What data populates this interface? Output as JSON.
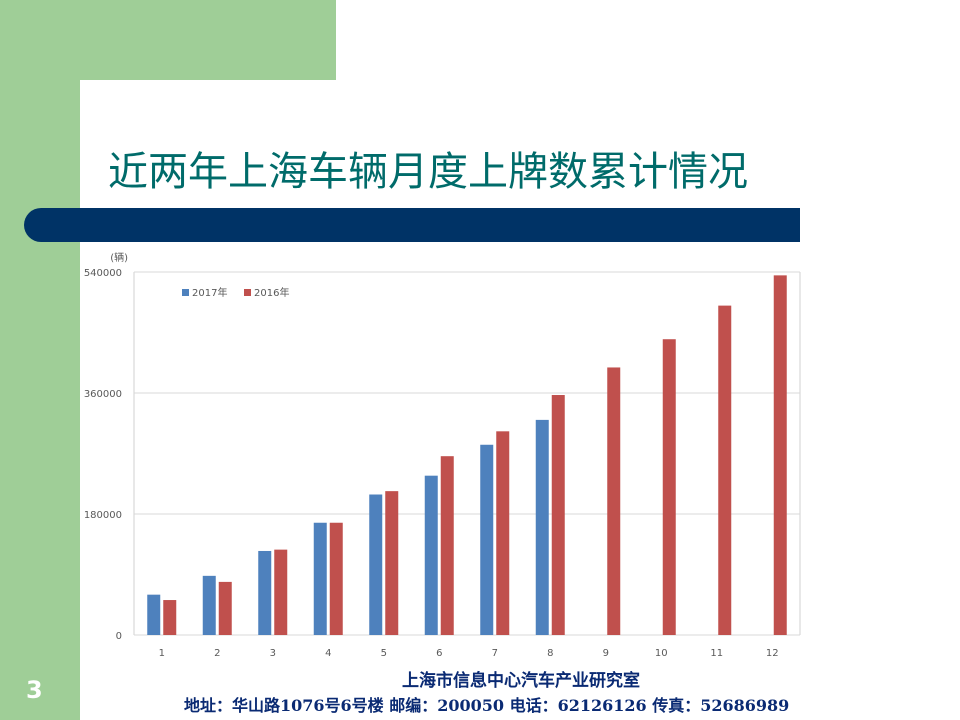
{
  "slide": {
    "title": "近两年上海车辆月度上牌数累计情况",
    "footer_org": "上海市信息中心汽车产业研究室",
    "footer_contact": "地址：华山路1076号6号楼  邮编：200050 电话：62126126 传真：52686989",
    "page_number": "3"
  },
  "colors": {
    "green_band": "#9fce97",
    "navy_bar": "#003366",
    "title_teal": "#006b6a",
    "series_2017": "#4e81bd",
    "series_2016": "#c0504d"
  },
  "chart_data": {
    "type": "bar",
    "unit_label": "(辆)",
    "categories": [
      "1",
      "2",
      "3",
      "4",
      "5",
      "6",
      "7",
      "8",
      "9",
      "10",
      "11",
      "12"
    ],
    "series": [
      {
        "name": "2017年",
        "color": "#4e81bd",
        "values": [
          60000,
          88000,
          125000,
          167000,
          209000,
          237000,
          283000,
          320000,
          null,
          null,
          null,
          null
        ]
      },
      {
        "name": "2016年",
        "color": "#c0504d",
        "values": [
          52000,
          79000,
          127000,
          167000,
          214000,
          266000,
          303000,
          357000,
          398000,
          440000,
          490000,
          535000
        ]
      }
    ],
    "yticks": [
      0,
      180000,
      360000,
      540000
    ],
    "ytick_labels": [
      "0",
      "180000",
      "360000",
      "540000"
    ],
    "ylim": [
      0,
      540000
    ],
    "grid": true,
    "legend": "top-left"
  }
}
